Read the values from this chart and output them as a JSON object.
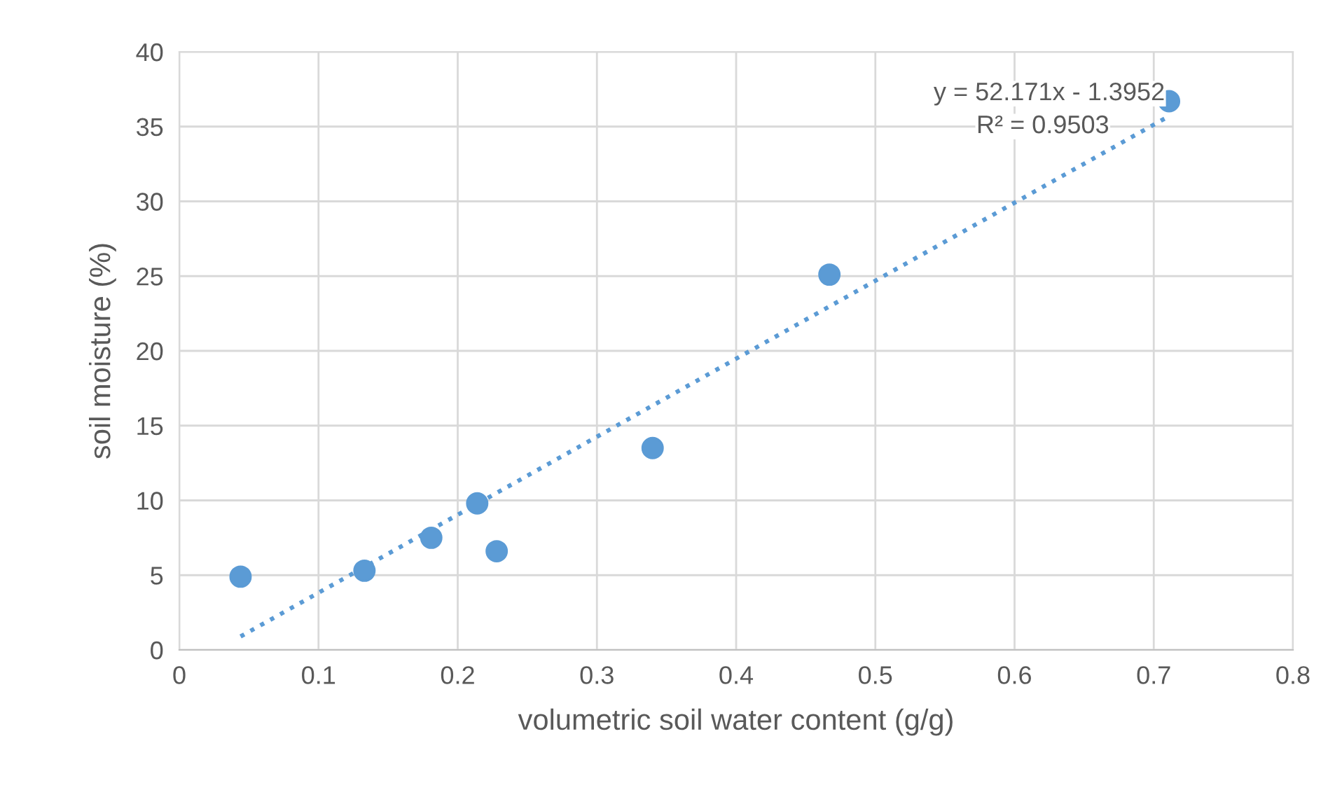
{
  "chart_data": {
    "type": "scatter",
    "xlabel": "volumetric soil water content (g/g)",
    "ylabel": "soil moisture (%)",
    "series": [
      {
        "color": "#5b9bd5",
        "marker": "circle",
        "x": [
          0.044,
          0.133,
          0.181,
          0.214,
          0.228,
          0.34,
          0.467,
          0.711
        ],
        "values": [
          4.9,
          5.3,
          7.5,
          9.8,
          6.6,
          13.5,
          25.1,
          36.7
        ]
      },
      {
        "type": "line",
        "color": "#5b9bd5",
        "line_style": "dotted",
        "marker": "none",
        "x": [
          0.044,
          0.711
        ],
        "values": [
          0.9,
          35.7
        ]
      }
    ],
    "annotations": [
      "y = 52.171x - 1.3952",
      "R² = 0.9503"
    ],
    "xlim": [
      0,
      0.8
    ],
    "xticks": [
      0,
      0.1,
      0.2,
      0.3,
      0.4,
      0.5,
      0.6,
      0.7,
      0.8
    ],
    "ylim": [
      0,
      40
    ],
    "yticks": [
      0,
      5,
      10,
      15,
      20,
      25,
      30,
      35,
      40
    ],
    "grid": true,
    "legend": false
  }
}
